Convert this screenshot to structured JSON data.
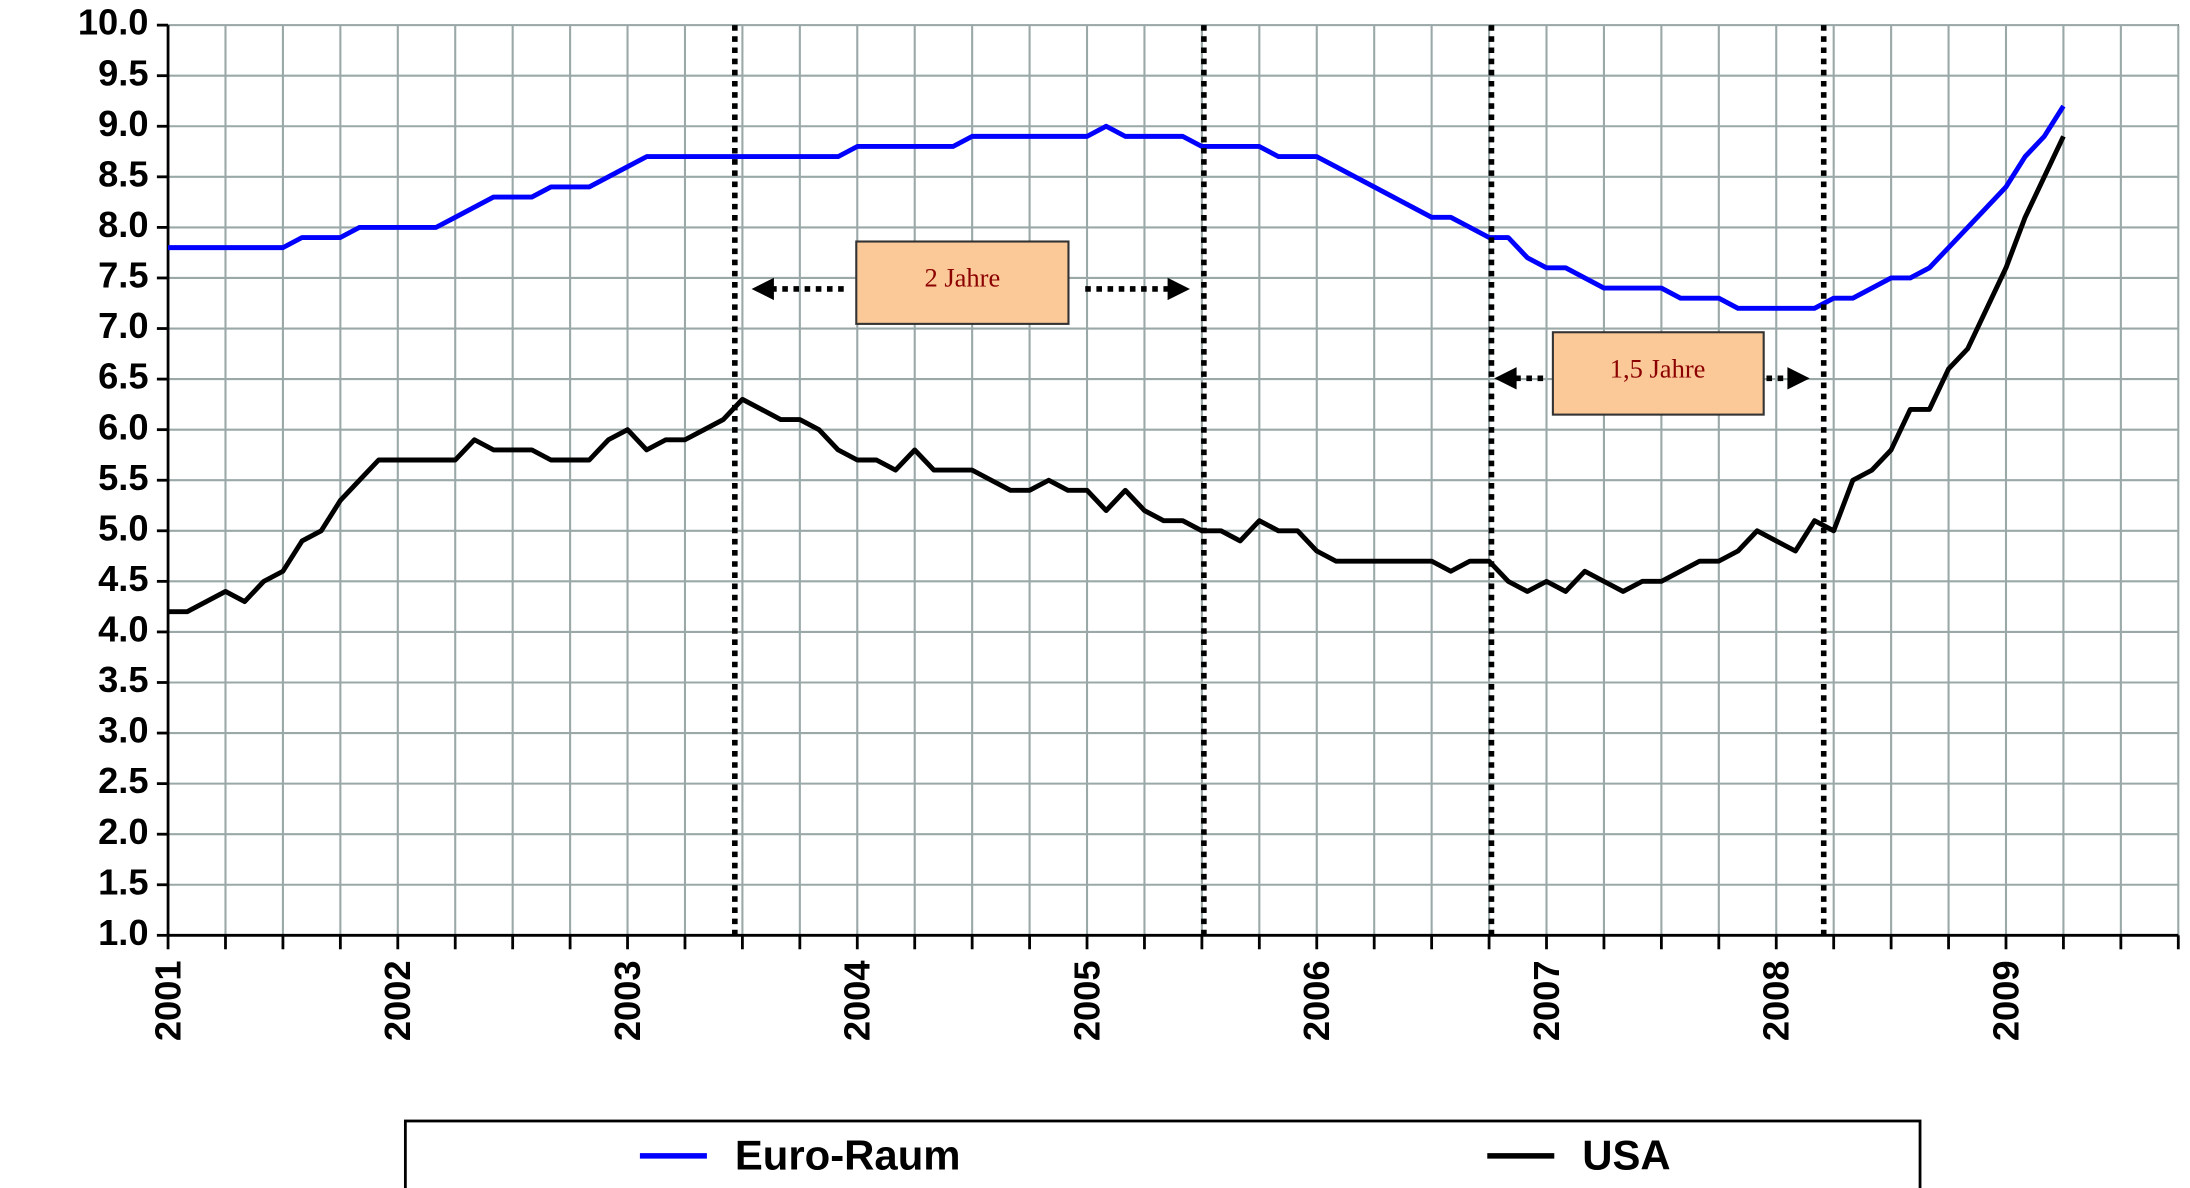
{
  "chart_data": {
    "type": "line",
    "categories": [
      "2001",
      null,
      null,
      null,
      null,
      null,
      null,
      null,
      null,
      null,
      null,
      null,
      "2002",
      null,
      null,
      null,
      null,
      null,
      null,
      null,
      null,
      null,
      null,
      null,
      "2003",
      null,
      null,
      null,
      null,
      null,
      null,
      null,
      null,
      null,
      null,
      null,
      "2004",
      null,
      null,
      null,
      null,
      null,
      null,
      null,
      null,
      null,
      null,
      null,
      "2005",
      null,
      null,
      null,
      null,
      null,
      null,
      null,
      null,
      null,
      null,
      null,
      "2006",
      null,
      null,
      null,
      null,
      null,
      null,
      null,
      null,
      null,
      null,
      null,
      "2007",
      null,
      null,
      null,
      null,
      null,
      null,
      null,
      null,
      null,
      null,
      null,
      "2008",
      null,
      null,
      null,
      null,
      null,
      null,
      null,
      null,
      null,
      null,
      null,
      "2009",
      null,
      null,
      null,
      null,
      null,
      null,
      null,
      null,
      null
    ],
    "series": [
      {
        "name": "Euro-Raum",
        "color": "#0000ff",
        "values": [
          7.8,
          7.8,
          7.8,
          7.8,
          7.8,
          7.8,
          7.8,
          7.9,
          7.9,
          7.9,
          8.0,
          8.0,
          8.0,
          8.0,
          8.0,
          8.1,
          8.2,
          8.3,
          8.3,
          8.3,
          8.4,
          8.4,
          8.4,
          8.5,
          8.6,
          8.7,
          8.7,
          8.7,
          8.7,
          8.7,
          8.7,
          8.7,
          8.7,
          8.7,
          8.7,
          8.7,
          8.8,
          8.8,
          8.8,
          8.8,
          8.8,
          8.8,
          8.9,
          8.9,
          8.9,
          8.9,
          8.9,
          8.9,
          8.9,
          9.0,
          8.9,
          8.9,
          8.9,
          8.9,
          8.8,
          8.8,
          8.8,
          8.8,
          8.7,
          8.7,
          8.7,
          8.6,
          8.5,
          8.4,
          8.3,
          8.2,
          8.1,
          8.1,
          8.0,
          7.9,
          7.9,
          7.7,
          7.6,
          7.6,
          7.5,
          7.4,
          7.4,
          7.4,
          7.4,
          7.3,
          7.3,
          7.3,
          7.2,
          7.2,
          7.2,
          7.2,
          7.2,
          7.3,
          7.3,
          7.4,
          7.5,
          7.5,
          7.6,
          7.8,
          8.0,
          8.2,
          8.4,
          8.7,
          8.9,
          9.2,
          null,
          null,
          null,
          null,
          null,
          null
        ]
      },
      {
        "name": "USA",
        "color": "#000000",
        "values": [
          4.2,
          4.2,
          4.3,
          4.4,
          4.3,
          4.5,
          4.6,
          4.9,
          5.0,
          5.3,
          5.5,
          5.7,
          5.7,
          5.7,
          5.7,
          5.7,
          5.9,
          5.8,
          5.8,
          5.8,
          5.7,
          5.7,
          5.7,
          5.9,
          6.0,
          5.8,
          5.9,
          5.9,
          6.0,
          6.1,
          6.3,
          6.2,
          6.1,
          6.1,
          6.0,
          5.8,
          5.7,
          5.7,
          5.6,
          5.8,
          5.6,
          5.6,
          5.6,
          5.5,
          5.4,
          5.4,
          5.5,
          5.4,
          5.4,
          5.2,
          5.4,
          5.2,
          5.1,
          5.1,
          5.0,
          5.0,
          4.9,
          5.1,
          5.0,
          5.0,
          4.8,
          4.7,
          4.7,
          4.7,
          4.7,
          4.7,
          4.7,
          4.6,
          4.7,
          4.7,
          4.5,
          4.4,
          4.5,
          4.4,
          4.6,
          4.5,
          4.4,
          4.5,
          4.5,
          4.6,
          4.7,
          4.7,
          4.8,
          5.0,
          4.9,
          4.8,
          5.1,
          5.0,
          5.5,
          5.6,
          5.8,
          6.2,
          6.2,
          6.6,
          6.8,
          7.2,
          7.6,
          8.1,
          8.5,
          8.9,
          null,
          null,
          null,
          null,
          null,
          null
        ]
      }
    ],
    "ylim": [
      1,
      10
    ],
    "yticks": [
      {
        "value": 1,
        "label": "1.0"
      },
      {
        "value": 1.5,
        "label": "1.5"
      },
      {
        "value": 2,
        "label": "2.0"
      },
      {
        "value": 2.5,
        "label": "2.5"
      },
      {
        "value": 3,
        "label": "3.0"
      },
      {
        "value": 3.5,
        "label": "3.5"
      },
      {
        "value": 4,
        "label": "4.0"
      },
      {
        "value": 4.5,
        "label": "4.5"
      },
      {
        "value": 5,
        "label": "5.0"
      },
      {
        "value": 5.5,
        "label": "5.5"
      },
      {
        "value": 6,
        "label": "6.0"
      },
      {
        "value": 6.5,
        "label": "6.5"
      },
      {
        "value": 7,
        "label": "7.0"
      },
      {
        "value": 7.5,
        "label": "7.5"
      },
      {
        "value": 8,
        "label": "8.0"
      },
      {
        "value": 8.5,
        "label": "8.5"
      },
      {
        "value": 9,
        "label": "9.0"
      },
      {
        "value": 9.5,
        "label": "9.5"
      },
      {
        "value": 10,
        "label": "10.0"
      }
    ],
    "grid": true,
    "legend": "bottom",
    "annotations": [
      "2 Jahre",
      "1,5 Jahre"
    ]
  }
}
